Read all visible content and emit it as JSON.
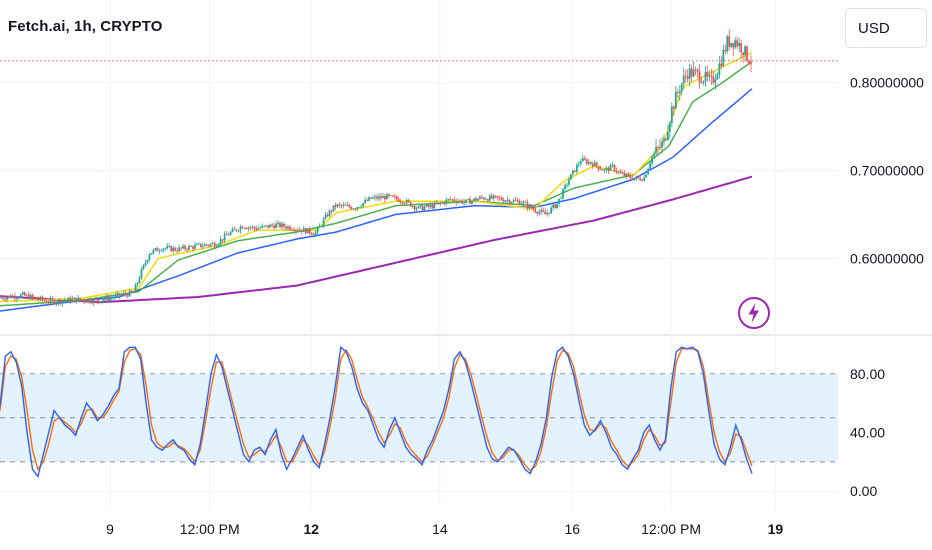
{
  "header": {
    "symbol_title": "Fetch.ai, 1h, CRYPTO",
    "currency": "USD"
  },
  "badge": {
    "icon": "lightning-icon",
    "color": "#9c27b0"
  },
  "colors": {
    "up_candle": "#26a69a",
    "down_candle": "#ef5350",
    "sma_fast": "#f5d90a",
    "sma_slow_ribbon": "#4caf50",
    "sma_blue": "#2962ff",
    "sma_200": "#9c27b0",
    "stoch_k": "#2962ff",
    "stoch_d": "#ff6d00",
    "stoch_band": "#e3f2fd",
    "last_price_line": "#ef5350"
  },
  "chart_data": [
    {
      "type": "candlestick",
      "title": "Fetch.ai, 1h, CRYPTO",
      "x_tick_labels": [
        {
          "label": "9",
          "bold": false,
          "pos": 0.118
        },
        {
          "label": "12:00 PM",
          "bold": false,
          "pos": 0.225
        },
        {
          "label": "12",
          "bold": true,
          "pos": 0.334
        },
        {
          "label": "14",
          "bold": false,
          "pos": 0.472
        },
        {
          "label": "16",
          "bold": false,
          "pos": 0.614
        },
        {
          "label": "12:00 PM",
          "bold": false,
          "pos": 0.72
        },
        {
          "label": "19",
          "bold": true,
          "pos": 0.832
        }
      ],
      "y_tick_labels": [
        "0.80000000",
        "0.70000000",
        "0.60000000"
      ],
      "y_ticks": [
        0.8,
        0.7,
        0.6
      ],
      "ylim": [
        0.515,
        0.885
      ],
      "last_price": 0.825,
      "price_path": [
        [
          0,
          0.555
        ],
        [
          12,
          0.558
        ],
        [
          25,
          0.551
        ],
        [
          38,
          0.553
        ],
        [
          50,
          0.552
        ],
        [
          60,
          0.557
        ],
        [
          68,
          0.561
        ],
        [
          72,
          0.585
        ],
        [
          76,
          0.606
        ],
        [
          82,
          0.612
        ],
        [
          90,
          0.61
        ],
        [
          100,
          0.614
        ],
        [
          110,
          0.617
        ],
        [
          116,
          0.628
        ],
        [
          123,
          0.637
        ],
        [
          130,
          0.634
        ],
        [
          140,
          0.638
        ],
        [
          150,
          0.634
        ],
        [
          160,
          0.629
        ],
        [
          166,
          0.65
        ],
        [
          170,
          0.66
        ],
        [
          180,
          0.658
        ],
        [
          188,
          0.668
        ],
        [
          196,
          0.67
        ],
        [
          204,
          0.666
        ],
        [
          212,
          0.657
        ],
        [
          220,
          0.66
        ],
        [
          228,
          0.667
        ],
        [
          236,
          0.664
        ],
        [
          244,
          0.669
        ],
        [
          252,
          0.668
        ],
        [
          258,
          0.666
        ],
        [
          264,
          0.664
        ],
        [
          270,
          0.656
        ],
        [
          276,
          0.65
        ],
        [
          282,
          0.662
        ],
        [
          288,
          0.69
        ],
        [
          294,
          0.712
        ],
        [
          300,
          0.708
        ],
        [
          306,
          0.7
        ],
        [
          310,
          0.704
        ],
        [
          314,
          0.696
        ],
        [
          318,
          0.693
        ],
        [
          322,
          0.69
        ],
        [
          326,
          0.692
        ],
        [
          330,
          0.716
        ],
        [
          336,
          0.732
        ],
        [
          340,
          0.77
        ],
        [
          344,
          0.795
        ],
        [
          348,
          0.812
        ],
        [
          352,
          0.81
        ],
        [
          356,
          0.806
        ],
        [
          360,
          0.8
        ],
        [
          364,
          0.82
        ],
        [
          368,
          0.846
        ],
        [
          372,
          0.848
        ],
        [
          376,
          0.838
        ],
        [
          378,
          0.83
        ],
        [
          380,
          0.825
        ]
      ],
      "series": [
        {
          "name": "",
          "color": "#9c27b0",
          "values": [
            [
              0,
              0.557
            ],
            [
              50,
              0.55
            ],
            [
              100,
              0.556
            ],
            [
              150,
              0.569
            ],
            [
              200,
              0.595
            ],
            [
              250,
              0.621
            ],
            [
              300,
              0.643
            ],
            [
              340,
              0.667
            ],
            [
              380,
              0.693
            ]
          ]
        },
        {
          "name": "",
          "color": "#2962ff",
          "values": [
            [
              0,
              0.54
            ],
            [
              30,
              0.549
            ],
            [
              60,
              0.556
            ],
            [
              90,
              0.58
            ],
            [
              120,
              0.606
            ],
            [
              150,
              0.622
            ],
            [
              170,
              0.63
            ],
            [
              200,
              0.65
            ],
            [
              240,
              0.66
            ],
            [
              270,
              0.658
            ],
            [
              290,
              0.668
            ],
            [
              320,
              0.69
            ],
            [
              340,
              0.715
            ],
            [
              360,
              0.755
            ],
            [
              380,
              0.793
            ]
          ]
        },
        {
          "name": "",
          "color": "#4caf50",
          "values": [
            [
              0,
              0.546
            ],
            [
              40,
              0.552
            ],
            [
              70,
              0.562
            ],
            [
              90,
              0.598
            ],
            [
              120,
              0.62
            ],
            [
              150,
              0.63
            ],
            [
              170,
              0.64
            ],
            [
              200,
              0.66
            ],
            [
              240,
              0.665
            ],
            [
              270,
              0.66
            ],
            [
              290,
              0.68
            ],
            [
              320,
              0.695
            ],
            [
              338,
              0.728
            ],
            [
              350,
              0.778
            ],
            [
              365,
              0.8
            ],
            [
              380,
              0.824
            ]
          ]
        },
        {
          "name": "",
          "color": "#f5d90a",
          "values": [
            [
              0,
              0.551
            ],
            [
              40,
              0.554
            ],
            [
              70,
              0.566
            ],
            [
              80,
              0.6
            ],
            [
              110,
              0.615
            ],
            [
              130,
              0.632
            ],
            [
              160,
              0.632
            ],
            [
              170,
              0.652
            ],
            [
              200,
              0.665
            ],
            [
              240,
              0.665
            ],
            [
              270,
              0.656
            ],
            [
              285,
              0.688
            ],
            [
              300,
              0.705
            ],
            [
              320,
              0.694
            ],
            [
              335,
              0.73
            ],
            [
              345,
              0.795
            ],
            [
              365,
              0.818
            ],
            [
              380,
              0.834
            ]
          ]
        }
      ]
    },
    {
      "type": "line",
      "title": "",
      "y_tick_labels": [
        "80.00",
        "40.00",
        "0.00"
      ],
      "y_ticks": [
        80,
        40,
        0
      ],
      "ylim": [
        -6,
        103
      ],
      "band": [
        20,
        80
      ],
      "midline": 50,
      "series": [
        {
          "name": "",
          "color": "#2962ff",
          "values": [
            58,
            92,
            95,
            88,
            72,
            40,
            15,
            10,
            25,
            40,
            55,
            50,
            45,
            42,
            38,
            50,
            60,
            55,
            48,
            52,
            58,
            65,
            70,
            95,
            98,
            98,
            90,
            60,
            35,
            30,
            28,
            32,
            35,
            30,
            28,
            22,
            18,
            32,
            55,
            80,
            93,
            85,
            70,
            55,
            40,
            25,
            20,
            28,
            30,
            25,
            35,
            42,
            25,
            15,
            22,
            30,
            38,
            28,
            20,
            16,
            32,
            50,
            72,
            98,
            95,
            85,
            70,
            60,
            55,
            45,
            35,
            30,
            42,
            50,
            40,
            30,
            25,
            22,
            18,
            28,
            35,
            45,
            55,
            70,
            90,
            95,
            88,
            75,
            60,
            45,
            30,
            22,
            20,
            25,
            30,
            28,
            22,
            15,
            12,
            20,
            32,
            50,
            78,
            95,
            98,
            92,
            80,
            62,
            45,
            38,
            42,
            48,
            40,
            30,
            25,
            18,
            15,
            22,
            28,
            40,
            45,
            35,
            28,
            35,
            70,
            95,
            98,
            97,
            98,
            95,
            80,
            55,
            32,
            22,
            18,
            30,
            45,
            35,
            22,
            12
          ]
        },
        {
          "name": "",
          "color": "#ff6d00",
          "values": [
            55,
            85,
            92,
            90,
            78,
            55,
            28,
            15,
            20,
            32,
            48,
            50,
            47,
            44,
            40,
            46,
            55,
            56,
            50,
            50,
            55,
            62,
            68,
            88,
            96,
            97,
            93,
            72,
            45,
            33,
            30,
            30,
            33,
            31,
            29,
            25,
            20,
            28,
            48,
            70,
            88,
            88,
            75,
            60,
            46,
            32,
            23,
            25,
            28,
            27,
            32,
            38,
            30,
            20,
            20,
            27,
            35,
            31,
            24,
            18,
            27,
            44,
            64,
            90,
            96,
            90,
            76,
            64,
            57,
            49,
            40,
            33,
            38,
            46,
            43,
            34,
            28,
            24,
            20,
            24,
            32,
            41,
            50,
            64,
            84,
            93,
            90,
            80,
            66,
            51,
            37,
            26,
            21,
            23,
            28,
            28,
            24,
            18,
            14,
            17,
            27,
            44,
            68,
            89,
            96,
            94,
            85,
            68,
            52,
            42,
            41,
            46,
            43,
            34,
            28,
            21,
            17,
            20,
            25,
            35,
            42,
            38,
            31,
            33,
            60,
            88,
            97,
            97,
            97,
            96,
            85,
            62,
            40,
            27,
            20,
            26,
            39,
            37,
            27,
            17
          ]
        }
      ]
    }
  ]
}
